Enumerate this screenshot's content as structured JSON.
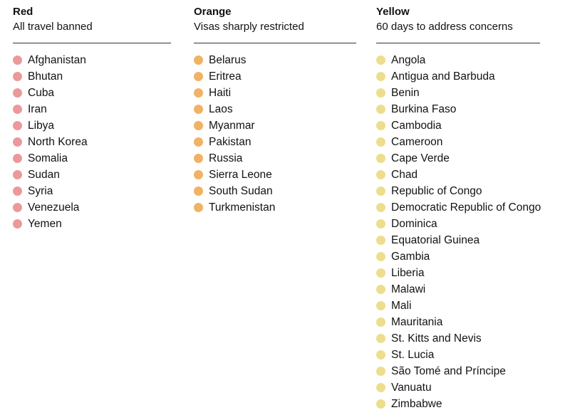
{
  "chart_data": {
    "type": "table",
    "title": "",
    "background": "#ffffff",
    "text_color": "#121212",
    "rule_color": "#333333",
    "groups": [
      {
        "label": "Red",
        "description": "All travel banned",
        "dot_color": "#ec999b",
        "countries": [
          "Afghanistan",
          "Bhutan",
          "Cuba",
          "Iran",
          "Libya",
          "North Korea",
          "Somalia",
          "Sudan",
          "Syria",
          "Venezuela",
          "Yemen"
        ]
      },
      {
        "label": "Orange",
        "description": "Visas sharply restricted",
        "dot_color": "#f0b264",
        "countries": [
          "Belarus",
          "Eritrea",
          "Haiti",
          "Laos",
          "Myanmar",
          "Pakistan",
          "Russia",
          "Sierra Leone",
          "South Sudan",
          "Turkmenistan"
        ]
      },
      {
        "label": "Yellow",
        "description": "60 days to address concerns",
        "dot_color": "#eedd8c",
        "countries": [
          "Angola",
          "Antigua and Barbuda",
          "Benin",
          "Burkina Faso",
          "Cambodia",
          "Cameroon",
          "Cape Verde",
          "Chad",
          "Republic of Congo",
          "Democratic Republic of Congo",
          "Dominica",
          "Equatorial Guinea",
          "Gambia",
          "Liberia",
          "Malawi",
          "Mali",
          "Mauritania",
          "St. Kitts and Nevis",
          "St. Lucia",
          "São Tomé and Príncipe",
          "Vanuatu",
          "Zimbabwe"
        ]
      }
    ]
  }
}
